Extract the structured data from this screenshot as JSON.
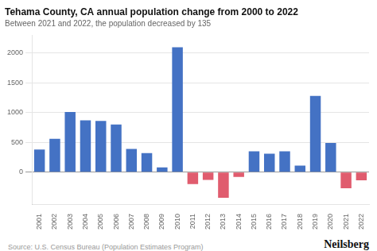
{
  "chart_data": {
    "type": "bar",
    "title": "Tehama County, CA annual population change from 2000 to 2022",
    "subtitle": "Between 2021 and 2022, the population decreased by 135",
    "annotations": [
      "Source: U.S. Census Bureau (Population Estimates Program)",
      "Neilsberg"
    ],
    "categories": [
      "2001",
      "2002",
      "2003",
      "2004",
      "2005",
      "2006",
      "2007",
      "2008",
      "2009",
      "2010",
      "2011",
      "2012",
      "2013",
      "2014",
      "2015",
      "2016",
      "2017",
      "2018",
      "2019",
      "2020",
      "2021",
      "2022"
    ],
    "values": [
      380,
      560,
      1010,
      870,
      860,
      800,
      390,
      320,
      80,
      2100,
      -200,
      -130,
      -430,
      -80,
      350,
      310,
      350,
      110,
      1280,
      490,
      -270,
      -135
    ],
    "colors": [
      "#4472C4",
      "#4472C4",
      "#4472C4",
      "#4472C4",
      "#4472C4",
      "#4472C4",
      "#4472C4",
      "#4472C4",
      "#4472C4",
      "#4472C4",
      "#E05C6E",
      "#E05C6E",
      "#E05C6E",
      "#E05C6E",
      "#4472C4",
      "#4472C4",
      "#4472C4",
      "#4472C4",
      "#4472C4",
      "#4472C4",
      "#E05C6E",
      "#E05C6E"
    ],
    "ylim": [
      -550,
      2300
    ],
    "yticks": [
      0,
      500,
      1000,
      1500,
      2000
    ],
    "grid": true
  }
}
